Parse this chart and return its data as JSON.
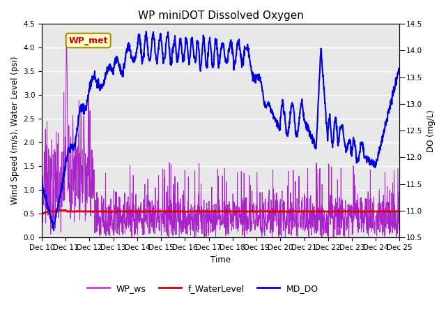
{
  "title": "WP miniDOT Dissolved Oxygen",
  "xlabel": "Time",
  "ylabel_left": "Wind Speed (m/s), Water Level (psi)",
  "ylabel_right": "DO (mg/L)",
  "annotation_text": "WP_met",
  "annotation_color": "#cc0000",
  "annotation_bg": "#ffffcc",
  "annotation_border": "#aa8800",
  "left_ylim": [
    0.0,
    4.5
  ],
  "right_ylim": [
    10.5,
    14.5
  ],
  "xtick_labels": [
    "Dec 10",
    "Dec 11",
    "Dec 12",
    "Dec 13",
    "Dec 14",
    "Dec 15",
    "Dec 16",
    "Dec 17",
    "Dec 18",
    "Dec 19",
    "Dec 20",
    "Dec 21",
    "Dec 22",
    "Dec 23",
    "Dec 24",
    "Dec 25"
  ],
  "legend_entries": [
    "WP_ws",
    "f_WaterLevel",
    "MD_DO"
  ],
  "legend_colors": [
    "#bb44dd",
    "#cc0000",
    "#0000ee"
  ],
  "line_ws_color": "#aa22cc",
  "line_wl_color": "#dd0000",
  "line_do_color": "#0000dd",
  "bg_color": "#e8e8e8",
  "grid_color": "#ffffff",
  "fig_bg": "#ffffff",
  "title_fontsize": 11,
  "tick_fontsize": 7.5,
  "label_fontsize": 8.5,
  "legend_fontsize": 9
}
